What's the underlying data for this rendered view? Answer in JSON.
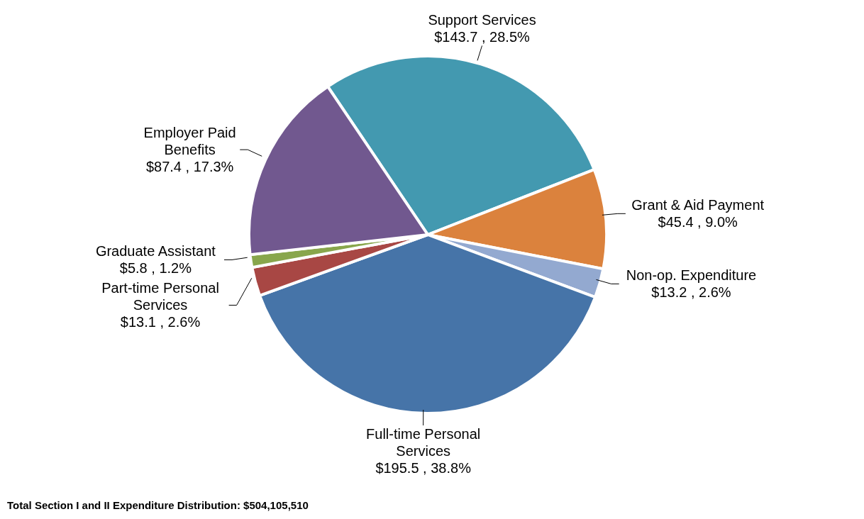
{
  "chart_data": {
    "type": "pie",
    "categories": [
      "Support Services",
      "Grant & Aid Payment",
      "Non-op. Expenditure",
      "Full-time Personal Services",
      "Part-time Personal Services",
      "Graduate Assistant",
      "Employer Paid Benefits"
    ],
    "values": [
      143.7,
      45.4,
      13.2,
      195.5,
      13.1,
      5.8,
      87.4
    ],
    "value_labels": [
      "$143.7 , 28.5%",
      "$45.4 , 9.0%",
      "$13.2 , 2.6%",
      "$195.5 , 38.8%",
      "$13.1 , 2.6%",
      "$5.8 , 1.2%",
      "$87.4 , 17.3%"
    ],
    "colors": [
      "#4399b0",
      "#db823d",
      "#93a9d0",
      "#4674a8",
      "#a84744",
      "#88a64c",
      "#71588f"
    ],
    "annotations": [
      "Total Section I and II Expenditure Distribution: $504,105,510"
    ]
  }
}
